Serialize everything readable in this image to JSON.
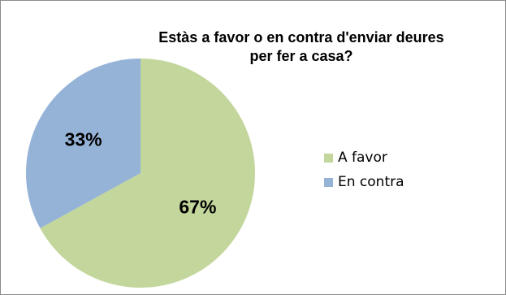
{
  "chart_data": {
    "type": "pie",
    "title": "Estàs a favor o en contra d'enviar deures\nper fer a casa?",
    "categories": [
      "A favor",
      "En contra"
    ],
    "values": [
      67,
      33
    ],
    "labels": [
      "67%",
      "33%"
    ],
    "colors": [
      "#C3D69B",
      "#95B3D7"
    ],
    "legend_position": "right"
  }
}
